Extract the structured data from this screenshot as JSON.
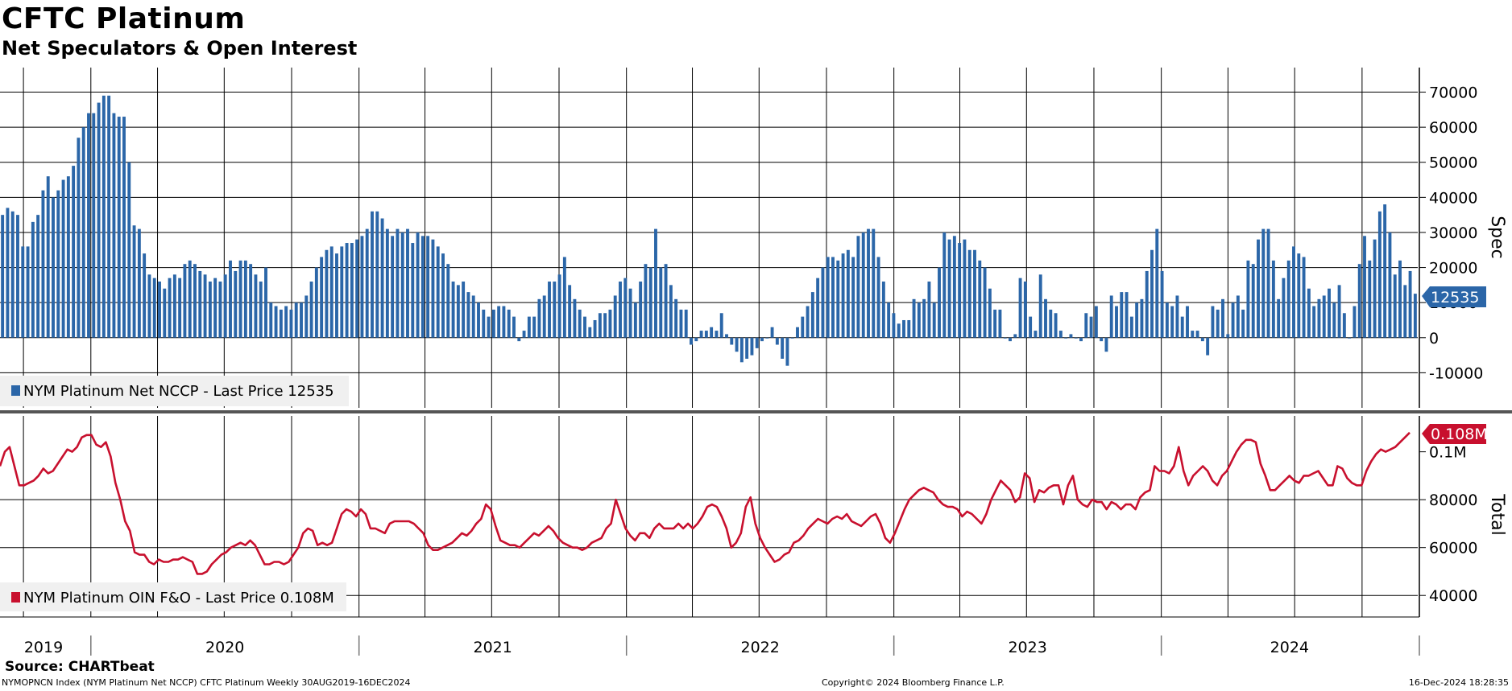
{
  "title": "CFTC Platinum",
  "subtitle": "Net Speculators & Open Interest",
  "source": "Source: CHARTbeat",
  "footer": {
    "left": "NYMOPNCN Index (NYM Platinum Net NCCP) CFTC Platinum  Weekly 30AUG2019-16DEC2024",
    "middle": "Copyright© 2024 Bloomberg Finance L.P.",
    "right": "16-Dec-2024 18:28:35"
  },
  "x_axis": {
    "labels": [
      "2019",
      "2020",
      "2021",
      "2022",
      "2023",
      "2024"
    ]
  },
  "colors": {
    "bars": "#2b66a8",
    "line": "#c8102e",
    "grid": "#000000"
  },
  "chart_data": [
    {
      "type": "bar",
      "x_start": "2019-08-30",
      "x_end": "2024-12-16",
      "frequency": "weekly",
      "ylabel": "Spec",
      "ylim": [
        -20000,
        77000
      ],
      "yticks": [
        -10000,
        0,
        10000,
        20000,
        30000,
        40000,
        50000,
        60000,
        70000
      ],
      "series": [
        {
          "name": "NYM Platinum Net NCCP - Last Price 12535",
          "last_value_label": "12535",
          "values": [
            35000,
            37000,
            36000,
            35000,
            26000,
            26000,
            33000,
            35000,
            42000,
            46000,
            40000,
            42000,
            45000,
            46000,
            49000,
            57000,
            60000,
            64000,
            64000,
            67000,
            69000,
            69000,
            64000,
            63000,
            63000,
            50000,
            32000,
            31000,
            24000,
            18000,
            17000,
            16000,
            14000,
            17000,
            18000,
            17000,
            21000,
            22000,
            21000,
            19000,
            18000,
            16000,
            17000,
            16000,
            18000,
            22000,
            19000,
            22000,
            22000,
            21000,
            18000,
            16000,
            20000,
            10000,
            9000,
            8000,
            9000,
            8000,
            10000,
            10000,
            12000,
            16000,
            20000,
            23000,
            25000,
            26000,
            24000,
            26000,
            27000,
            27000,
            28000,
            29000,
            31000,
            36000,
            36000,
            34000,
            31000,
            29000,
            31000,
            30000,
            31000,
            27000,
            30000,
            29000,
            29000,
            28000,
            26000,
            24000,
            21000,
            16000,
            15000,
            16000,
            13000,
            12000,
            10000,
            8000,
            6000,
            8000,
            9000,
            9000,
            8000,
            6000,
            -1000,
            2000,
            6000,
            6000,
            11000,
            12000,
            16000,
            16000,
            18000,
            23000,
            15000,
            11000,
            8000,
            6000,
            3000,
            5000,
            7000,
            7000,
            8000,
            12000,
            16000,
            17000,
            14000,
            10000,
            16000,
            21000,
            20000,
            31000,
            20000,
            21000,
            15000,
            11000,
            8000,
            8000,
            -2000,
            -1000,
            2000,
            2000,
            3000,
            2000,
            7000,
            1000,
            -2000,
            -4000,
            -7000,
            -6000,
            -5000,
            -3000,
            -1000,
            0,
            3000,
            -2000,
            -6000,
            -8000,
            0,
            3000,
            6000,
            9000,
            13000,
            17000,
            20000,
            23000,
            23000,
            22000,
            24000,
            25000,
            23000,
            29000,
            30000,
            31000,
            31000,
            23000,
            16000,
            10000,
            7000,
            4000,
            5000,
            5000,
            11000,
            10000,
            11000,
            16000,
            10000,
            20000,
            30000,
            28000,
            29000,
            27000,
            28000,
            25000,
            25000,
            22000,
            20000,
            14000,
            8000,
            8000,
            0,
            -1000,
            1000,
            17000,
            16000,
            6000,
            2000,
            18000,
            11000,
            8000,
            7000,
            2000,
            0,
            1000,
            0,
            -1000,
            7000,
            6000,
            9000,
            -1000,
            -4000,
            12000,
            9000,
            13000,
            13000,
            6000,
            10000,
            11000,
            19000,
            25000,
            31000,
            19000,
            10000,
            9000,
            12000,
            6000,
            9000,
            2000,
            2000,
            -1000,
            -5000,
            9000,
            8000,
            11000,
            1000,
            10000,
            12000,
            8000,
            22000,
            21000,
            28000,
            31000,
            31000,
            22000,
            11000,
            17000,
            22000,
            26000,
            24000,
            23000,
            14000,
            9000,
            11000,
            12000,
            14000,
            10000,
            15000,
            7000,
            0,
            9000,
            21000,
            29000,
            22000,
            28000,
            36000,
            38000,
            30000,
            18000,
            22000,
            15000,
            19000,
            12535
          ]
        }
      ]
    },
    {
      "type": "line",
      "x_start": "2019-08-30",
      "x_end": "2024-12-16",
      "frequency": "weekly",
      "ylabel": "Total",
      "ylim": [
        31000,
        115000
      ],
      "yticks": [
        40000,
        60000,
        80000
      ],
      "ytick_labels": [
        "40000",
        "60000",
        "80000",
        "0.1M"
      ],
      "series": [
        {
          "name": "NYM Platinum OIN F&O - Last Price 0.108M",
          "last_value_label": "0.108M",
          "values": [
            94000,
            100000,
            102000,
            94000,
            86000,
            86000,
            87000,
            88000,
            90000,
            93000,
            91000,
            92000,
            95000,
            98000,
            101000,
            100000,
            102000,
            106000,
            107000,
            107000,
            103000,
            102000,
            104000,
            98000,
            87000,
            80000,
            71000,
            67000,
            58000,
            57000,
            57000,
            54000,
            53000,
            55000,
            54000,
            54000,
            55000,
            55000,
            56000,
            55000,
            54000,
            49000,
            49000,
            50000,
            53000,
            55000,
            57000,
            58000,
            60000,
            61000,
            62000,
            61000,
            63000,
            61000,
            57000,
            53000,
            53000,
            54000,
            54000,
            53000,
            54000,
            57000,
            60000,
            66000,
            68000,
            67000,
            61000,
            62000,
            61000,
            62000,
            68000,
            74000,
            76000,
            75000,
            73000,
            76000,
            74000,
            68000,
            68000,
            67000,
            66000,
            70000,
            71000,
            71000,
            71000,
            71000,
            70000,
            68000,
            66000,
            61000,
            59000,
            59000,
            60000,
            61000,
            62000,
            64000,
            66000,
            65000,
            67000,
            70000,
            72000,
            78000,
            76000,
            69000,
            63000,
            62000,
            61000,
            61000,
            60000,
            62000,
            64000,
            66000,
            65000,
            67000,
            69000,
            67000,
            64000,
            62000,
            61000,
            60000,
            60000,
            59000,
            60000,
            62000,
            63000,
            64000,
            68000,
            70000,
            80000,
            74000,
            68000,
            65000,
            63000,
            66000,
            66000,
            64000,
            68000,
            70000,
            68000,
            68000,
            68000,
            70000,
            68000,
            70000,
            68000,
            70000,
            73000,
            77000,
            78000,
            77000,
            73000,
            68000,
            60000,
            62000,
            66000,
            77000,
            81000,
            70000,
            64000,
            60000,
            57000,
            54000,
            55000,
            57000,
            58000,
            62000,
            63000,
            65000,
            68000,
            70000,
            72000,
            71000,
            70000,
            72000,
            73000,
            72000,
            74000,
            71000,
            70000,
            69000,
            71000,
            73000,
            74000,
            70000,
            64000,
            62000,
            66000,
            71000,
            76000,
            80000,
            82000,
            84000,
            85000,
            84000,
            83000,
            80000,
            78000,
            77000,
            77000,
            76000,
            73000,
            75000,
            74000,
            72000,
            70000,
            74000,
            80000,
            84000,
            88000,
            86000,
            84000,
            79000,
            81000,
            91000,
            89000,
            79000,
            84000,
            83000,
            85000,
            86000,
            86000,
            78000,
            86000,
            90000,
            80000,
            78000,
            77000,
            80000,
            79000,
            79000,
            76000,
            79000,
            78000,
            76000,
            78000,
            78000,
            76000,
            81000,
            83000,
            84000,
            94000,
            92000,
            92000,
            91000,
            94000,
            102000,
            92000,
            86000,
            90000,
            92000,
            94000,
            92000,
            88000,
            86000,
            90000,
            92000,
            96000,
            100000,
            103000,
            105000,
            105000,
            104000,
            95000,
            90000,
            84000,
            84000,
            86000,
            88000,
            90000,
            88000,
            87000,
            90000,
            90000,
            91000,
            92000,
            89000,
            86000,
            86000,
            94000,
            93000,
            89000,
            87000,
            86000,
            86000,
            92000,
            96000,
            99000,
            101000,
            100000,
            101000,
            102000,
            104000,
            106000,
            108000
          ]
        }
      ]
    }
  ]
}
